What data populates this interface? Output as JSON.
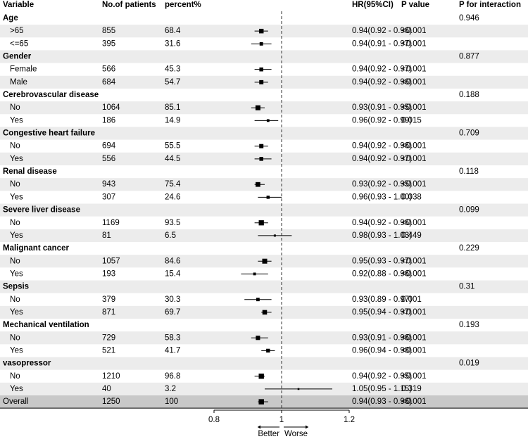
{
  "chart_data": {
    "type": "forest",
    "columns": [
      "Variable",
      "No.of patients",
      "percent%",
      "HR(95%CI)",
      "P value",
      "P for interaction"
    ],
    "xlim": [
      0.8,
      1.2
    ],
    "xticks": [
      0.8,
      1,
      1.2
    ],
    "reference": 1,
    "direction_labels": [
      "Better",
      "Worse"
    ],
    "color": "#000000",
    "band_color": "#ececec",
    "overall_color": "#c8c8c8",
    "rows": [
      {
        "label": "Age",
        "group": true,
        "p_int": "0.946"
      },
      {
        "label": ">65",
        "n": 855,
        "pct": 68.4,
        "hr": 0.94,
        "lower": 0.92,
        "upper": 0.96,
        "ci_label": "0.94(0.92 - 0.96)",
        "p": "<0.001"
      },
      {
        "label": "<=65",
        "n": 395,
        "pct": 31.6,
        "hr": 0.94,
        "lower": 0.91,
        "upper": 0.97,
        "ci_label": "0.94(0.91 - 0.97)",
        "p": "<0.001"
      },
      {
        "label": "Gender",
        "group": true,
        "p_int": "0.877"
      },
      {
        "label": "Female",
        "n": 566,
        "pct": 45.3,
        "hr": 0.94,
        "lower": 0.92,
        "upper": 0.97,
        "ci_label": "0.94(0.92 - 0.97)",
        "p": "<0.001"
      },
      {
        "label": "Male",
        "n": 684,
        "pct": 54.7,
        "hr": 0.94,
        "lower": 0.92,
        "upper": 0.96,
        "ci_label": "0.94(0.92 - 0.96)",
        "p": "<0.001"
      },
      {
        "label": "Cerebrovascular disease",
        "group": true,
        "p_int": "0.188"
      },
      {
        "label": "No",
        "n": 1064,
        "pct": 85.1,
        "hr": 0.93,
        "lower": 0.91,
        "upper": 0.95,
        "ci_label": "0.93(0.91 - 0.95)",
        "p": "<0.001"
      },
      {
        "label": "Yes",
        "n": 186,
        "pct": 14.9,
        "hr": 0.96,
        "lower": 0.92,
        "upper": 0.99,
        "ci_label": "0.96(0.92 - 0.99)",
        "p": "0.015"
      },
      {
        "label": "Congestive heart failure",
        "group": true,
        "p_int": "0.709"
      },
      {
        "label": "No",
        "n": 694,
        "pct": 55.5,
        "hr": 0.94,
        "lower": 0.92,
        "upper": 0.96,
        "ci_label": "0.94(0.92 - 0.96)",
        "p": "<0.001"
      },
      {
        "label": "Yes",
        "n": 556,
        "pct": 44.5,
        "hr": 0.94,
        "lower": 0.92,
        "upper": 0.97,
        "ci_label": "0.94(0.92 - 0.97)",
        "p": "<0.001"
      },
      {
        "label": "Renal disease",
        "group": true,
        "p_int": "0.118"
      },
      {
        "label": "No",
        "n": 943,
        "pct": 75.4,
        "hr": 0.93,
        "lower": 0.92,
        "upper": 0.95,
        "ci_label": "0.93(0.92 - 0.95)",
        "p": "<0.001"
      },
      {
        "label": "Yes",
        "n": 307,
        "pct": 24.6,
        "hr": 0.96,
        "lower": 0.93,
        "upper": 1.0,
        "ci_label": "0.96(0.93 - 1.00)",
        "p": "0.038"
      },
      {
        "label": "Severe liver disease",
        "group": true,
        "p_int": "0.099"
      },
      {
        "label": "No",
        "n": 1169,
        "pct": 93.5,
        "hr": 0.94,
        "lower": 0.92,
        "upper": 0.96,
        "ci_label": "0.94(0.92 - 0.96)",
        "p": "<0.001"
      },
      {
        "label": "Yes",
        "n": 81,
        "pct": 6.5,
        "hr": 0.98,
        "lower": 0.93,
        "upper": 1.03,
        "ci_label": "0.98(0.93 - 1.03)",
        "p": "0.449"
      },
      {
        "label": "Malignant cancer",
        "group": true,
        "p_int": "0.229"
      },
      {
        "label": "No",
        "n": 1057,
        "pct": 84.6,
        "hr": 0.95,
        "lower": 0.93,
        "upper": 0.97,
        "ci_label": "0.95(0.93 - 0.97)",
        "p": "<0.001"
      },
      {
        "label": "Yes",
        "n": 193,
        "pct": 15.4,
        "hr": 0.92,
        "lower": 0.88,
        "upper": 0.96,
        "ci_label": "0.92(0.88 - 0.96)",
        "p": "<0.001"
      },
      {
        "label": "Sepsis",
        "group": true,
        "p_int": "0.31"
      },
      {
        "label": "No",
        "n": 379,
        "pct": 30.3,
        "hr": 0.93,
        "lower": 0.89,
        "upper": 0.97,
        "ci_label": "0.93(0.89 - 0.97)",
        "p": "0.001"
      },
      {
        "label": "Yes",
        "n": 871,
        "pct": 69.7,
        "hr": 0.95,
        "lower": 0.94,
        "upper": 0.97,
        "ci_label": "0.95(0.94 - 0.97)",
        "p": "<0.001"
      },
      {
        "label": "Mechanical ventilation",
        "group": true,
        "p_int": "0.193"
      },
      {
        "label": "No",
        "n": 729,
        "pct": 58.3,
        "hr": 0.93,
        "lower": 0.91,
        "upper": 0.96,
        "ci_label": "0.93(0.91 - 0.96)",
        "p": "<0.001"
      },
      {
        "label": "Yes",
        "n": 521,
        "pct": 41.7,
        "hr": 0.96,
        "lower": 0.94,
        "upper": 0.98,
        "ci_label": "0.96(0.94 - 0.98)",
        "p": "<0.001"
      },
      {
        "label": "vasopressor",
        "group": true,
        "p_int": "0.019"
      },
      {
        "label": "No",
        "n": 1210,
        "pct": 96.8,
        "hr": 0.94,
        "lower": 0.92,
        "upper": 0.95,
        "ci_label": "0.94(0.92 - 0.95)",
        "p": "<0.001"
      },
      {
        "label": "Yes",
        "n": 40,
        "pct": 3.2,
        "hr": 1.05,
        "lower": 0.95,
        "upper": 1.15,
        "ci_label": "1.05(0.95 - 1.15)",
        "p": "0.319"
      },
      {
        "label": "Overall",
        "overall": true,
        "n": 1250,
        "pct": 100,
        "hr": 0.94,
        "lower": 0.93,
        "upper": 0.96,
        "ci_label": "0.94(0.93 - 0.96)",
        "p": "<0.001"
      }
    ]
  }
}
